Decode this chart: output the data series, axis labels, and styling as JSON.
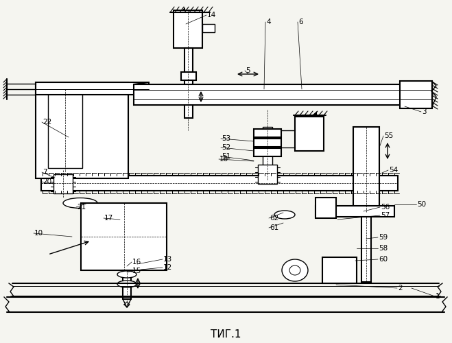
{
  "title": "ΤИГ.1",
  "bg_color": "#f5f5f0",
  "lw": 1.0,
  "lw2": 1.5,
  "figsize": [
    6.59,
    5.0
  ],
  "dpi": 100
}
